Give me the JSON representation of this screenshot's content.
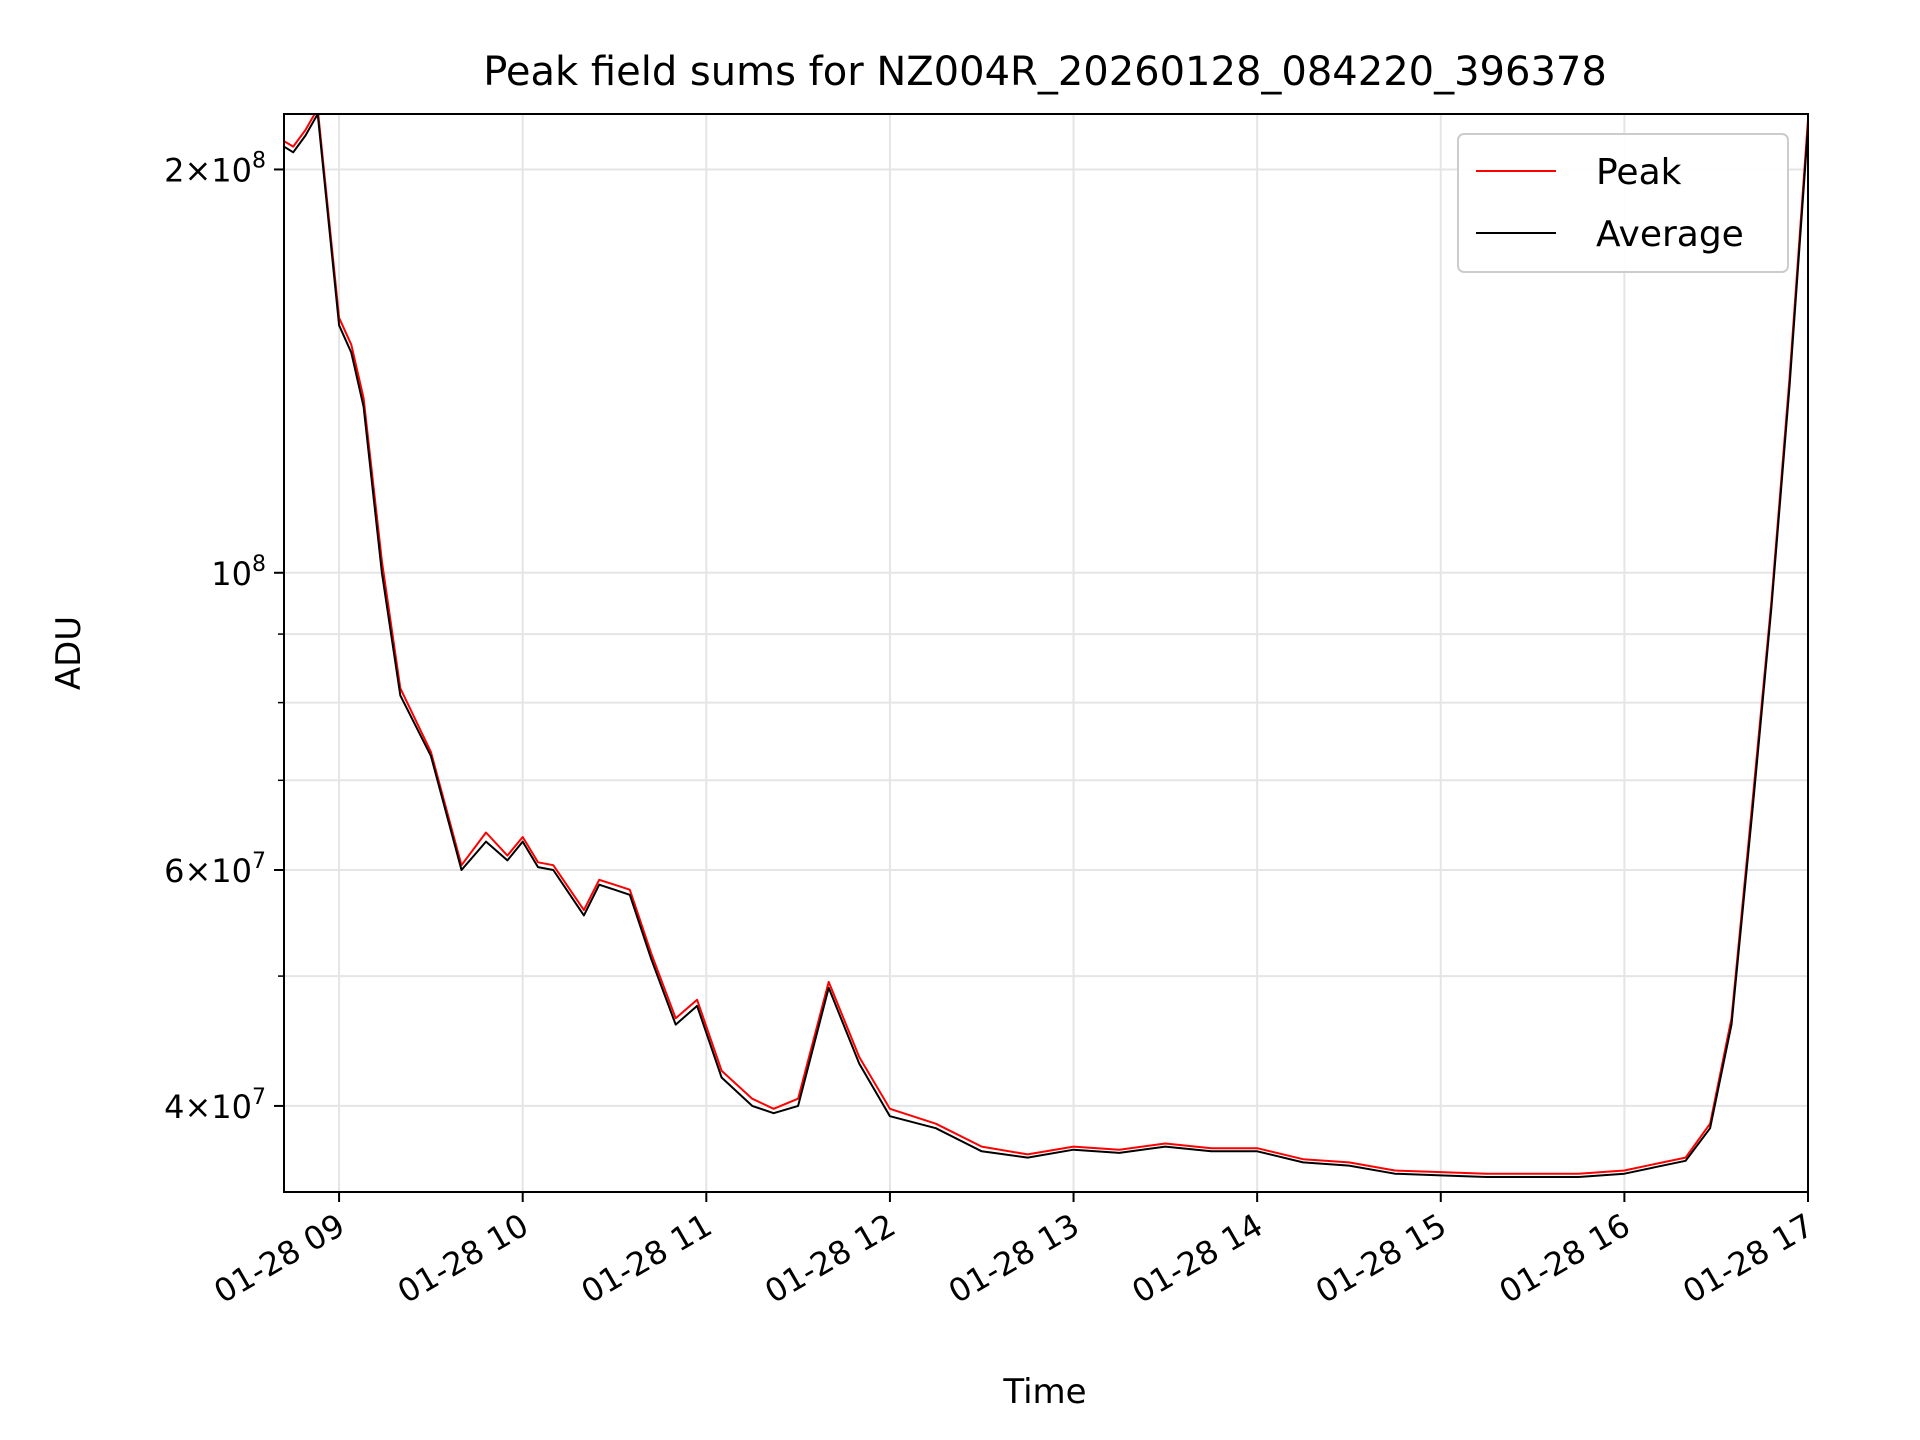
{
  "chart_data": {
    "type": "line",
    "title": "Peak field sums for NZ004R_20260128_084220_396378",
    "xlabel": "Time",
    "ylabel": "ADU",
    "y_scale": "log",
    "ylim": [
      34500000,
      220000000
    ],
    "xlim": [
      "2026-01-28 08:42",
      "2026-01-28 17:00"
    ],
    "x_ticks": [
      {
        "time": "2026-01-28 09:00",
        "label": "01-28 09"
      },
      {
        "time": "2026-01-28 10:00",
        "label": "01-28 10"
      },
      {
        "time": "2026-01-28 11:00",
        "label": "01-28 11"
      },
      {
        "time": "2026-01-28 12:00",
        "label": "01-28 12"
      },
      {
        "time": "2026-01-28 13:00",
        "label": "01-28 13"
      },
      {
        "time": "2026-01-28 14:00",
        "label": "01-28 14"
      },
      {
        "time": "2026-01-28 15:00",
        "label": "01-28 15"
      },
      {
        "time": "2026-01-28 16:00",
        "label": "01-28 16"
      },
      {
        "time": "2026-01-28 17:00",
        "label": "01-28 17"
      }
    ],
    "y_ticks": [
      {
        "value": 40000000,
        "mantissa": "4",
        "exponent": "7"
      },
      {
        "value": 60000000,
        "mantissa": "6",
        "exponent": "7"
      },
      {
        "value": 100000000,
        "mantissa": "",
        "exponent": "8"
      },
      {
        "value": 200000000,
        "mantissa": "2",
        "exponent": "8"
      }
    ],
    "y_minor_ticks": [
      50000000,
      70000000,
      80000000,
      90000000
    ],
    "grid": true,
    "legend_position": "top-right",
    "series": [
      {
        "name": "Peak",
        "color": "#ff0000",
        "x": [
          "2026-01-28 08:42",
          "2026-01-28 08:45",
          "2026-01-28 08:49",
          "2026-01-28 08:53",
          "2026-01-28 09:00",
          "2026-01-28 09:04",
          "2026-01-28 09:08",
          "2026-01-28 09:14",
          "2026-01-28 09:20",
          "2026-01-28 09:30",
          "2026-01-28 09:40",
          "2026-01-28 09:48",
          "2026-01-28 09:55",
          "2026-01-28 10:00",
          "2026-01-28 10:05",
          "2026-01-28 10:10",
          "2026-01-28 10:20",
          "2026-01-28 10:25",
          "2026-01-28 10:30",
          "2026-01-28 10:35",
          "2026-01-28 10:42",
          "2026-01-28 10:50",
          "2026-01-28 10:57",
          "2026-01-28 11:05",
          "2026-01-28 11:15",
          "2026-01-28 11:22",
          "2026-01-28 11:30",
          "2026-01-28 11:40",
          "2026-01-28 11:50",
          "2026-01-28 12:00",
          "2026-01-28 12:15",
          "2026-01-28 12:30",
          "2026-01-28 12:45",
          "2026-01-28 13:00",
          "2026-01-28 13:15",
          "2026-01-28 13:30",
          "2026-01-28 13:45",
          "2026-01-28 14:00",
          "2026-01-28 14:15",
          "2026-01-28 14:30",
          "2026-01-28 14:45",
          "2026-01-28 15:00",
          "2026-01-28 15:15",
          "2026-01-28 15:30",
          "2026-01-28 15:45",
          "2026-01-28 16:00",
          "2026-01-28 16:10",
          "2026-01-28 16:20",
          "2026-01-28 16:28",
          "2026-01-28 16:35",
          "2026-01-28 16:42",
          "2026-01-28 16:48",
          "2026-01-28 16:54",
          "2026-01-28 17:00"
        ],
        "y": [
          210000000,
          208000000,
          214000000,
          222000000,
          155000000,
          148000000,
          135000000,
          102000000,
          82000000,
          73500000,
          60500000,
          64000000,
          61500000,
          63500000,
          60800000,
          60500000,
          56000000,
          59000000,
          58500000,
          58000000,
          52000000,
          46500000,
          48000000,
          42500000,
          40500000,
          39800000,
          40500000,
          49500000,
          43500000,
          39800000,
          38800000,
          37300000,
          36800000,
          37300000,
          37100000,
          37500000,
          37200000,
          37200000,
          36500000,
          36300000,
          35800000,
          35700000,
          35600000,
          35600000,
          35600000,
          35800000,
          36200000,
          36600000,
          38800000,
          46500000,
          68000000,
          95000000,
          140000000,
          218000000
        ]
      },
      {
        "name": "Average",
        "color": "#000000",
        "x": [
          "2026-01-28 08:42",
          "2026-01-28 08:45",
          "2026-01-28 08:49",
          "2026-01-28 08:53",
          "2026-01-28 09:00",
          "2026-01-28 09:04",
          "2026-01-28 09:08",
          "2026-01-28 09:14",
          "2026-01-28 09:20",
          "2026-01-28 09:30",
          "2026-01-28 09:40",
          "2026-01-28 09:48",
          "2026-01-28 09:55",
          "2026-01-28 10:00",
          "2026-01-28 10:05",
          "2026-01-28 10:10",
          "2026-01-28 10:20",
          "2026-01-28 10:25",
          "2026-01-28 10:30",
          "2026-01-28 10:35",
          "2026-01-28 10:42",
          "2026-01-28 10:50",
          "2026-01-28 10:57",
          "2026-01-28 11:05",
          "2026-01-28 11:15",
          "2026-01-28 11:22",
          "2026-01-28 11:30",
          "2026-01-28 11:40",
          "2026-01-28 11:50",
          "2026-01-28 12:00",
          "2026-01-28 12:15",
          "2026-01-28 12:30",
          "2026-01-28 12:45",
          "2026-01-28 13:00",
          "2026-01-28 13:15",
          "2026-01-28 13:30",
          "2026-01-28 13:45",
          "2026-01-28 14:00",
          "2026-01-28 14:15",
          "2026-01-28 14:30",
          "2026-01-28 14:45",
          "2026-01-28 15:00",
          "2026-01-28 15:15",
          "2026-01-28 15:30",
          "2026-01-28 15:45",
          "2026-01-28 16:00",
          "2026-01-28 16:10",
          "2026-01-28 16:20",
          "2026-01-28 16:28",
          "2026-01-28 16:35",
          "2026-01-28 16:42",
          "2026-01-28 16:48",
          "2026-01-28 16:54",
          "2026-01-28 17:00"
        ],
        "y": [
          208000000,
          206000000,
          212000000,
          220000000,
          153000000,
          146000000,
          133000000,
          100000000,
          81000000,
          73000000,
          60000000,
          63000000,
          61000000,
          63000000,
          60300000,
          60000000,
          55500000,
          58500000,
          58000000,
          57500000,
          51500000,
          46000000,
          47500000,
          42000000,
          40000000,
          39500000,
          40000000,
          49000000,
          43000000,
          39300000,
          38500000,
          37000000,
          36600000,
          37100000,
          36900000,
          37300000,
          37000000,
          37000000,
          36300000,
          36100000,
          35600000,
          35500000,
          35400000,
          35400000,
          35400000,
          35600000,
          36000000,
          36400000,
          38500000,
          46000000,
          67000000,
          94000000,
          138000000,
          215000000
        ]
      }
    ]
  },
  "styles": {
    "axes_color": "#000000",
    "grid_color": "#e5e5e5",
    "legend_border_color": "#cccccc"
  }
}
